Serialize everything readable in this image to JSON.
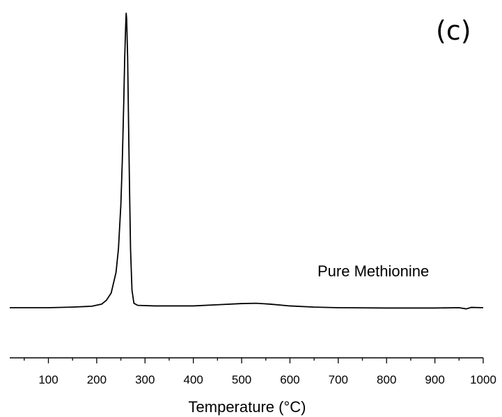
{
  "chart_data": {
    "type": "line",
    "panel_label": "(c)",
    "title": "",
    "xlabel": "Temperature (°C)",
    "ylabel": "",
    "xlim": [
      20,
      1000
    ],
    "x_ticks": [
      100,
      200,
      300,
      400,
      500,
      600,
      700,
      800,
      900,
      1000
    ],
    "x_tick_labels": [
      "100",
      "200",
      "300",
      "400",
      "500",
      "600",
      "700",
      "800",
      "900",
      "1000"
    ],
    "grid": false,
    "y_axis_shown": false,
    "series": [
      {
        "label": "Pure Methionine",
        "color": "#000000",
        "points": [
          [
            20,
            0.0
          ],
          [
            100,
            0.0
          ],
          [
            150,
            0.002
          ],
          [
            190,
            0.005
          ],
          [
            210,
            0.012
          ],
          [
            220,
            0.025
          ],
          [
            230,
            0.05
          ],
          [
            240,
            0.12
          ],
          [
            245,
            0.2
          ],
          [
            250,
            0.35
          ],
          [
            253,
            0.5
          ],
          [
            256,
            0.7
          ],
          [
            258,
            0.85
          ],
          [
            260,
            0.96
          ],
          [
            261,
            1.0
          ],
          [
            262,
            0.98
          ],
          [
            264,
            0.85
          ],
          [
            266,
            0.62
          ],
          [
            268,
            0.4
          ],
          [
            270,
            0.2
          ],
          [
            273,
            0.06
          ],
          [
            277,
            0.015
          ],
          [
            285,
            0.008
          ],
          [
            320,
            0.006
          ],
          [
            400,
            0.006
          ],
          [
            450,
            0.01
          ],
          [
            500,
            0.014
          ],
          [
            530,
            0.015
          ],
          [
            560,
            0.012
          ],
          [
            600,
            0.006
          ],
          [
            650,
            0.002
          ],
          [
            700,
            0.0
          ],
          [
            800,
            -0.001
          ],
          [
            900,
            -0.001
          ],
          [
            950,
            0.0
          ],
          [
            965,
            -0.004
          ],
          [
            975,
            0.001
          ],
          [
            1000,
            0.0
          ]
        ]
      }
    ]
  }
}
